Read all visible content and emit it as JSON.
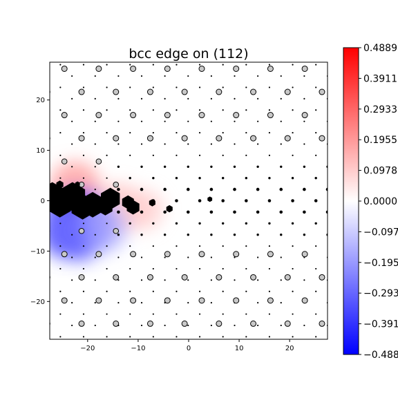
{
  "chart_data": {
    "type": "scatter",
    "title": "bcc edge on (112)",
    "xlabel": "",
    "ylabel": "",
    "xlim": [
      -27.5,
      27.5
    ],
    "ylim": [
      -27.5,
      27.5
    ],
    "x_ticks": [
      -20,
      -10,
      0,
      10,
      20
    ],
    "y_ticks": [
      -20,
      -10,
      0,
      10,
      20
    ],
    "x_tick_labels": [
      "−20",
      "−10",
      "0",
      "10",
      "20"
    ],
    "y_tick_labels": [
      "−20",
      "−10",
      "0",
      "10",
      "20"
    ],
    "grid": false,
    "colormap": "bwr",
    "colorbar": {
      "min": -0.4889,
      "max": 0.4889,
      "colors": {
        "low": "#0000ff",
        "mid": "#ffffff",
        "high": "#ff0000"
      },
      "tick_values": [
        0.4889,
        0.3911,
        0.2933,
        0.1955,
        0.0978,
        0.0,
        -0.0978,
        -0.1955,
        -0.2933,
        -0.3911,
        -0.4889
      ],
      "tick_labels": [
        "0.4889",
        "0.3911",
        "0.2933",
        "0.1955",
        "0.0978",
        "0.0000",
        "−0.097",
        "−0.195",
        "−0.293",
        "−0.391",
        "−0.488"
      ]
    },
    "series": [
      {
        "marker": "open circles",
        "fill_color": "#c8c8c8",
        "edge_color": "#000000",
        "lattice_x_spacing": 6.8,
        "lattice_y_spacing": 4.6,
        "row_stagger": 3.4,
        "x_offset": -24.6,
        "y_offset": 26.2
      },
      {
        "marker": "small dots",
        "color": "#000000",
        "lattice_x_spacing": 4.6,
        "lattice_y_spacing": 2.25,
        "row_stagger": 2.3
      }
    ],
    "core_atoms": [
      {
        "x": -27,
        "y": 0.8,
        "size": 3.2
      },
      {
        "x": -23,
        "y": 0.8,
        "size": 3.2
      },
      {
        "x": -19,
        "y": -0.8,
        "size": 2.8
      },
      {
        "x": -25.5,
        "y": -0.8,
        "size": 2.8
      },
      {
        "x": -21,
        "y": -1.2,
        "size": 2.8
      },
      {
        "x": -15.5,
        "y": 0.4,
        "size": 2.4
      },
      {
        "x": -16.5,
        "y": -1.3,
        "size": 1.8
      },
      {
        "x": -12,
        "y": -0.3,
        "size": 1.5
      },
      {
        "x": -11,
        "y": -1.3,
        "size": 1.6
      },
      {
        "x": -25.5,
        "y": 3.2,
        "size": 0.9
      },
      {
        "x": -22,
        "y": 3.3,
        "size": 0.6
      },
      {
        "x": -7.2,
        "y": -0.4,
        "size": 0.8
      },
      {
        "x": -3.8,
        "y": -1.6,
        "size": 0.8
      },
      {
        "x": 4.2,
        "y": 0.3,
        "size": 0.6
      }
    ],
    "field_blobs": [
      {
        "x": -22.5,
        "y": 2.8,
        "value": 0.2,
        "radius": 5
      },
      {
        "x": -14,
        "y": -1.5,
        "value": 0.12,
        "radius": 5
      },
      {
        "x": -9,
        "y": -1.8,
        "value": 0.1,
        "radius": 4
      },
      {
        "x": -22,
        "y": -4.8,
        "value": -0.42,
        "radius": 7
      },
      {
        "x": -17,
        "y": -5.3,
        "value": -0.15,
        "radius": 5
      },
      {
        "x": -24.5,
        "y": -6.5,
        "value": -0.28,
        "radius": 5
      }
    ]
  }
}
